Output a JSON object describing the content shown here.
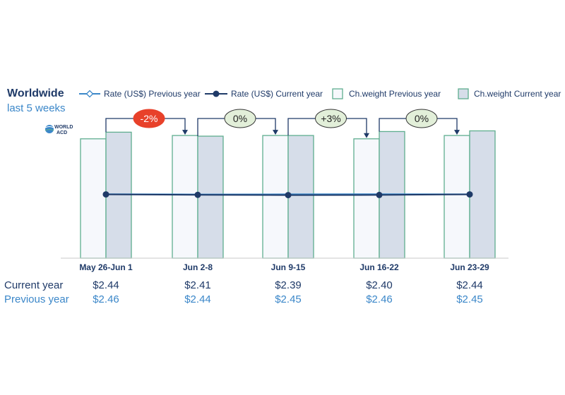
{
  "chart_data": {
    "type": "bar",
    "title": "Worldwide",
    "subtitle": "last 5 weeks",
    "categories": [
      "May 26-Jun 1",
      "Jun 2-8",
      "Jun 9-15",
      "Jun 16-22",
      "Jun 23-29"
    ],
    "series": [
      {
        "name": "Rate (US$) Previous year",
        "kind": "line",
        "values": [
          2.46,
          2.44,
          2.45,
          2.46,
          2.45
        ]
      },
      {
        "name": "Rate (US$) Current year",
        "kind": "line",
        "values": [
          2.44,
          2.41,
          2.39,
          2.4,
          2.44
        ]
      },
      {
        "name": "Ch.weight Previous year",
        "kind": "bar",
        "values": [
          0.9,
          0.925,
          0.925,
          0.9,
          0.925
        ]
      },
      {
        "name": "Ch.weight Current year",
        "kind": "bar",
        "values": [
          0.95,
          0.92,
          0.925,
          0.955,
          0.96
        ]
      }
    ],
    "changes": [
      "-2%",
      "0%",
      "+3%",
      "0%"
    ],
    "change_colors": [
      "#e8412a",
      "#e2efd9",
      "#e2efd9",
      "#e2efd9"
    ],
    "table": {
      "current_label": "Current year",
      "previous_label": "Previous year",
      "current": [
        "$2.44",
        "$2.41",
        "$2.39",
        "$2.40",
        "$2.44"
      ],
      "previous": [
        "$2.46",
        "$2.44",
        "$2.45",
        "$2.46",
        "$2.45"
      ]
    },
    "grid": false,
    "legend_position": "top",
    "colors": {
      "navy": "#1f3a68",
      "light_blue": "#3b87c9",
      "bar_border": "#5fae8f",
      "bar_prev_fill": "#f6f8fc",
      "bar_cur_fill": "#d6dde9"
    }
  },
  "logo": {
    "line1": "WORLD",
    "line2": "ACD"
  }
}
